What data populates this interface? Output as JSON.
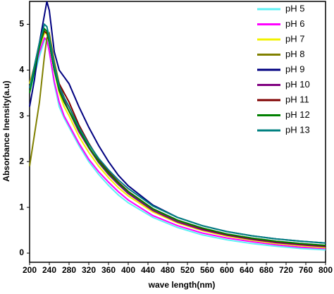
{
  "chart_data": {
    "type": "line",
    "xlabel": "wave length(nm)",
    "ylabel": "Absorbance Inensity(a.u)",
    "x": [
      200,
      210,
      220,
      230,
      235,
      240,
      250,
      260,
      270,
      280,
      300,
      320,
      340,
      360,
      380,
      400,
      450,
      500,
      550,
      600,
      650,
      700,
      750,
      800
    ],
    "series": [
      {
        "name": "pH 5",
        "color": "#5ef1f5",
        "values": [
          3.5,
          3.9,
          4.3,
          4.65,
          4.7,
          4.4,
          3.7,
          3.2,
          2.95,
          2.75,
          2.35,
          2.0,
          1.72,
          1.48,
          1.27,
          1.1,
          0.78,
          0.56,
          0.4,
          0.29,
          0.21,
          0.15,
          0.1,
          0.07
        ]
      },
      {
        "name": "pH 6",
        "color": "#ff00ff",
        "values": [
          3.6,
          4.0,
          4.4,
          4.7,
          4.65,
          4.4,
          3.75,
          3.3,
          3.0,
          2.8,
          2.4,
          2.05,
          1.78,
          1.55,
          1.34,
          1.16,
          0.82,
          0.6,
          0.44,
          0.33,
          0.25,
          0.18,
          0.13,
          0.1
        ]
      },
      {
        "name": "pH 7",
        "color": "#f2f200",
        "values": [
          3.7,
          4.1,
          4.5,
          4.8,
          4.8,
          4.6,
          4.0,
          3.5,
          3.2,
          3.0,
          2.55,
          2.2,
          1.9,
          1.65,
          1.43,
          1.25,
          0.9,
          0.66,
          0.49,
          0.37,
          0.28,
          0.21,
          0.16,
          0.12
        ]
      },
      {
        "name": "pH 8",
        "color": "#808000",
        "values": [
          1.9,
          2.6,
          3.3,
          4.3,
          4.7,
          4.8,
          4.2,
          3.7,
          3.4,
          3.2,
          2.7,
          2.3,
          1.98,
          1.72,
          1.5,
          1.32,
          0.95,
          0.7,
          0.52,
          0.4,
          0.31,
          0.24,
          0.19,
          0.15
        ]
      },
      {
        "name": "pH 9",
        "color": "#000080",
        "values": [
          3.2,
          3.8,
          4.6,
          5.2,
          5.5,
          5.3,
          4.4,
          4.0,
          3.85,
          3.7,
          3.2,
          2.75,
          2.35,
          2.0,
          1.7,
          1.47,
          1.05,
          0.78,
          0.6,
          0.47,
          0.38,
          0.31,
          0.26,
          0.22
        ]
      },
      {
        "name": "pH 10",
        "color": "#800080",
        "values": [
          3.6,
          4.1,
          4.6,
          4.9,
          4.85,
          4.6,
          4.0,
          3.6,
          3.35,
          3.1,
          2.65,
          2.3,
          1.98,
          1.72,
          1.5,
          1.3,
          0.93,
          0.68,
          0.51,
          0.39,
          0.3,
          0.23,
          0.18,
          0.14
        ]
      },
      {
        "name": "pH 11",
        "color": "#800000",
        "values": [
          3.6,
          4.1,
          4.55,
          4.85,
          4.8,
          4.6,
          4.0,
          3.7,
          3.5,
          3.3,
          2.8,
          2.4,
          2.05,
          1.78,
          1.55,
          1.35,
          0.97,
          0.72,
          0.54,
          0.41,
          0.32,
          0.25,
          0.2,
          0.16
        ]
      },
      {
        "name": "pH 12",
        "color": "#008000",
        "values": [
          3.5,
          4.0,
          4.5,
          4.9,
          4.85,
          4.6,
          4.0,
          3.55,
          3.3,
          3.1,
          2.7,
          2.32,
          2.0,
          1.75,
          1.53,
          1.34,
          0.97,
          0.72,
          0.55,
          0.42,
          0.33,
          0.26,
          0.21,
          0.17
        ]
      },
      {
        "name": "pH 13",
        "color": "#008080",
        "values": [
          3.6,
          4.1,
          4.6,
          5.0,
          4.95,
          4.7,
          4.1,
          3.65,
          3.4,
          3.2,
          2.75,
          2.38,
          2.07,
          1.82,
          1.6,
          1.41,
          1.03,
          0.78,
          0.6,
          0.47,
          0.38,
          0.31,
          0.26,
          0.22
        ]
      }
    ],
    "xlim": [
      200,
      800
    ],
    "xticks": [
      200,
      240,
      280,
      320,
      360,
      400,
      440,
      480,
      520,
      560,
      600,
      640,
      680,
      720,
      760,
      800
    ],
    "ylim": [
      -0.2,
      5.5
    ],
    "yticks": [
      0,
      1,
      2,
      3,
      4,
      5
    ],
    "legend": "upper right"
  }
}
